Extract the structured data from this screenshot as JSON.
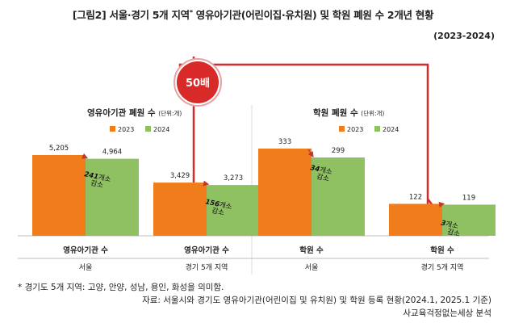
{
  "title": {
    "main": "[그림2] 서울·경기 5개 지역",
    "sup": "*",
    "rest": " 영유아기관(어린이집·유치원) 및 학원 폐원 수 2개년 현황"
  },
  "period": "(2023-2024)",
  "callout": {
    "label": "50배",
    "color": "#d92a2a"
  },
  "colors": {
    "y2023": "#f07c1c",
    "y2024": "#8fc062",
    "arrow": "#c0392b"
  },
  "chart_data": [
    {
      "type": "bar",
      "title": "영유아기관 폐원 수",
      "unit": "(단위:개)",
      "series": [
        {
          "name": "2023",
          "values": [
            5205,
            3429
          ]
        },
        {
          "name": "2024",
          "values": [
            4964,
            3273
          ]
        }
      ],
      "categories": [
        "영유아기관 수",
        "영유아기관 수"
      ],
      "regions": [
        "서울",
        "경기 5개 지역"
      ],
      "value_labels": [
        [
          "5,205",
          "4,964"
        ],
        [
          "3,429",
          "3,273"
        ]
      ],
      "changes": [
        {
          "num": "241",
          "unit": "개소",
          "word": "감소"
        },
        {
          "num": "156",
          "unit": "개소",
          "word": "감소"
        }
      ],
      "legend_position": "top-right",
      "grid": false
    },
    {
      "type": "bar",
      "title": "학원 폐원 수",
      "unit": "(단위:개)",
      "series": [
        {
          "name": "2023",
          "values": [
            333,
            122
          ]
        },
        {
          "name": "2024",
          "values": [
            299,
            119
          ]
        }
      ],
      "categories": [
        "학원 수",
        "학원 수"
      ],
      "regions": [
        "서울",
        "경기 5개 지역"
      ],
      "value_labels": [
        [
          "333",
          "299"
        ],
        [
          "122",
          "119"
        ]
      ],
      "changes": [
        {
          "num": "34",
          "unit": "개소",
          "word": "감소"
        },
        {
          "num": "3",
          "unit": "개소",
          "word": "감소"
        }
      ],
      "legend_position": "top-right",
      "grid": false
    }
  ],
  "footnote": "* 경기도 5개 지역: 고양, 안양, 성남, 용인, 화성을 의미함.",
  "source": "자료: 서울시와 경기도 영유아기관(어린이집 및 유치원) 및 학원 등록 현황(2024.1, 2025.1 기준)",
  "credit": "사교육걱정없는세상 분석"
}
